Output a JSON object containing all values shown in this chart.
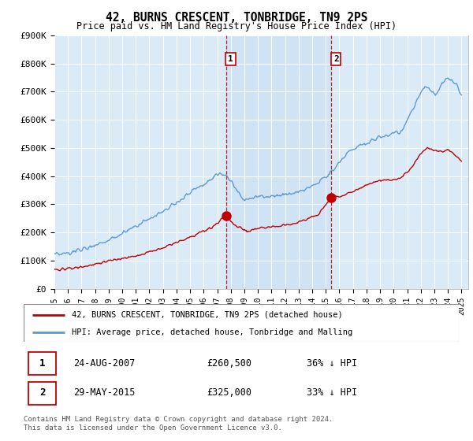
{
  "title": "42, BURNS CRESCENT, TONBRIDGE, TN9 2PS",
  "subtitle": "Price paid vs. HM Land Registry's House Price Index (HPI)",
  "ylim": [
    0,
    900000
  ],
  "yticks": [
    0,
    100000,
    200000,
    300000,
    400000,
    500000,
    600000,
    700000,
    800000,
    900000
  ],
  "ytick_labels": [
    "£0",
    "£100K",
    "£200K",
    "£300K",
    "£400K",
    "£500K",
    "£600K",
    "£700K",
    "£800K",
    "£900K"
  ],
  "xlim_start": 1995.0,
  "xlim_end": 2025.5,
  "hpi_color": "#5b9bd5",
  "price_color": "#c00000",
  "vline_color": "#c00000",
  "shade_color": "#daeaf7",
  "bg_color": "#daeaf7",
  "transactions": [
    {
      "date_num": 2007.644,
      "price": 260500,
      "label": "1",
      "date_str": "24-AUG-2007",
      "price_str": "£260,500",
      "pct": "36% ↓ HPI"
    },
    {
      "date_num": 2015.411,
      "price": 325000,
      "label": "2",
      "date_str": "29-MAY-2015",
      "price_str": "£325,000",
      "pct": "33% ↓ HPI"
    }
  ],
  "legend_line1": "42, BURNS CRESCENT, TONBRIDGE, TN9 2PS (detached house)",
  "legend_line2": "HPI: Average price, detached house, Tonbridge and Malling",
  "footer": "Contains HM Land Registry data © Crown copyright and database right 2024.\nThis data is licensed under the Open Government Licence v3.0."
}
